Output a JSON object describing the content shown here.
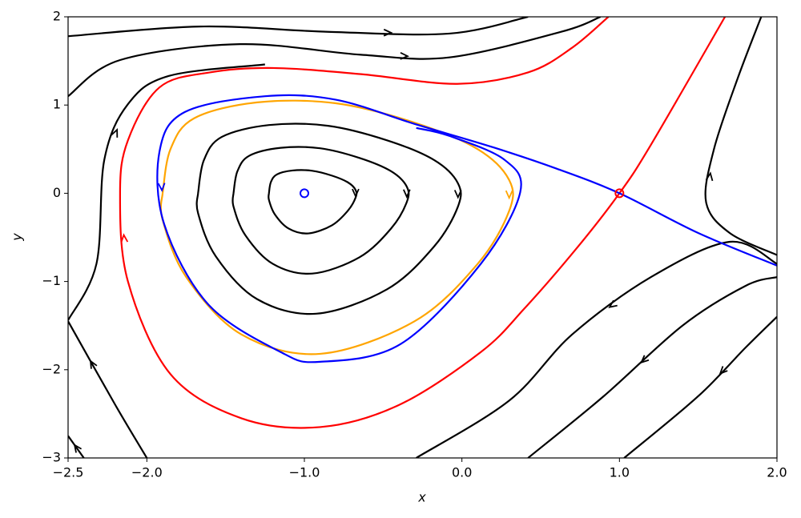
{
  "chart_data": {
    "type": "line",
    "xlabel": "x",
    "ylabel": "y",
    "xlim": [
      -2.5,
      2.0
    ],
    "ylim": [
      -3,
      2
    ],
    "xticks": [
      {
        "value": -2.5,
        "label": "−2.5"
      },
      {
        "value": -2.0,
        "label": "−2.0"
      },
      {
        "value": -1.0,
        "label": "−1.0"
      },
      {
        "value": 0.0,
        "label": "0.0"
      },
      {
        "value": 1.0,
        "label": "1.0"
      },
      {
        "value": 2.0,
        "label": "2.0"
      }
    ],
    "yticks": [
      {
        "value": -3,
        "label": "−3"
      },
      {
        "value": -2,
        "label": "−2"
      },
      {
        "value": -1,
        "label": "−1"
      },
      0,
      1,
      2
    ],
    "series": [
      {
        "color": "#000000",
        "x": [
          -2.5,
          -1.66,
          -0.85,
          -0.08,
          0.42
        ],
        "values": [
          1.78,
          1.89,
          1.83,
          1.81,
          2.0
        ]
      },
      {
        "color": "#000000",
        "x": [
          -2.5,
          -2.17,
          -1.41,
          -0.64,
          -0.08,
          0.63,
          0.88
        ],
        "values": [
          1.1,
          1.51,
          1.69,
          1.57,
          1.54,
          1.83,
          2.0
        ]
      },
      {
        "color": "#000000",
        "x": [
          -2.5,
          -2.32,
          -2.27,
          -2.12,
          -1.86,
          -1.25
        ],
        "values": [
          -1.44,
          -0.8,
          0.38,
          1.01,
          1.33,
          1.46
        ]
      },
      {
        "color": "#000000",
        "x": [
          -2.0,
          -2.2,
          -2.5
        ],
        "values": [
          -3,
          -2.4,
          -1.45
        ]
      },
      {
        "color": "#000000",
        "x": [
          -2.4,
          -2.5
        ],
        "values": [
          -3,
          -2.75
        ]
      },
      {
        "color": "#000000",
        "x": [
          2.0,
          1.7,
          1.2,
          0.7,
          0.3,
          -0.29
        ],
        "values": [
          -0.8,
          -0.55,
          -0.95,
          -1.6,
          -2.35,
          -3
        ]
      },
      {
        "color": "#000000",
        "x": [
          2.0,
          1.8,
          1.4,
          0.9,
          0.42
        ],
        "values": [
          -0.95,
          -1.05,
          -1.5,
          -2.3,
          -3
        ]
      },
      {
        "color": "#000000",
        "x": [
          2.0,
          1.8,
          1.5,
          1.03
        ],
        "values": [
          -1.4,
          -1.75,
          -2.3,
          -3
        ]
      },
      {
        "color": "#000000",
        "x": [
          2.0,
          1.7,
          1.55,
          1.6,
          1.75,
          1.9
        ],
        "values": [
          -0.7,
          -0.45,
          -0.1,
          0.5,
          1.3,
          2.0
        ]
      },
      {
        "color": "#000000",
        "x": [
          -1.675,
          -1.638,
          -1.525,
          -1.225,
          -0.85,
          -0.475,
          -0.175,
          -0.025,
          -0.025,
          -0.175,
          -0.475,
          -0.925,
          -1.3,
          -1.563,
          -1.675,
          -1.675
        ],
        "values": [
          0,
          0.375,
          0.638,
          0.773,
          0.765,
          0.6,
          0.375,
          0.113,
          -0.15,
          -0.6,
          -1.088,
          -1.365,
          -1.2,
          -0.713,
          -0.225,
          0
        ]
      },
      {
        "color": "#000000",
        "x": [
          -1.45,
          -1.425,
          -1.35,
          -1.15,
          -0.9,
          -0.65,
          -0.45,
          -0.35,
          -0.35,
          -0.45,
          -0.65,
          -0.95,
          -1.2,
          -1.375,
          -1.45,
          -1.45
        ],
        "values": [
          0,
          0.25,
          0.425,
          0.515,
          0.51,
          0.4,
          0.25,
          0.075,
          -0.1,
          -0.4,
          -0.725,
          -0.91,
          -0.8,
          -0.475,
          -0.15,
          0
        ]
      },
      {
        "color": "#000000",
        "x": [
          -1.225,
          -1.213,
          -1.175,
          -1.075,
          -0.95,
          -0.825,
          -0.725,
          -0.675,
          -0.675,
          -0.725,
          -0.825,
          -0.975,
          -1.1,
          -1.188,
          -1.225,
          -1.225
        ],
        "values": [
          0,
          0.125,
          0.213,
          0.258,
          0.255,
          0.2,
          0.125,
          0.038,
          -0.05,
          -0.2,
          -0.363,
          -0.455,
          -0.4,
          -0.238,
          -0.075,
          0
        ]
      },
      {
        "color": "#ffa500",
        "x": [
          -1.9,
          -1.85,
          -1.7,
          -1.3,
          -0.8,
          -0.3,
          0.1,
          0.3,
          0.3,
          0.1,
          -0.3,
          -0.9,
          -1.4,
          -1.75,
          -1.9,
          -1.9
        ],
        "values": [
          0,
          0.5,
          0.85,
          1.03,
          1.02,
          0.8,
          0.5,
          0.15,
          -0.2,
          -0.8,
          -1.45,
          -1.82,
          -1.6,
          -0.95,
          -0.3,
          0
        ]
      },
      {
        "color": "#ff0000",
        "x": [
          1.67,
          1.2,
          1.0,
          0.73,
          0.4,
          0.12,
          -0.4,
          -0.9,
          -1.4,
          -1.85,
          -2.12,
          -2.17,
          -2.12,
          -1.92,
          -1.6,
          -1.2,
          -0.64,
          -0.03,
          0.42,
          0.7,
          0.93
        ],
        "values": [
          2.0,
          0.55,
          0.0,
          -0.62,
          -1.3,
          -1.8,
          -2.4,
          -2.65,
          -2.55,
          -2.05,
          -1.0,
          0.0,
          0.6,
          1.2,
          1.37,
          1.42,
          1.35,
          1.24,
          1.37,
          1.65,
          2.0
        ]
      },
      {
        "color": "#0000ff",
        "x": [
          2.0,
          1.5,
          1.0,
          0.6,
          0.2,
          -0.29,
          -0.8,
          -1.25,
          -1.76,
          -1.92,
          -1.89,
          -1.61,
          -1.15,
          -0.9,
          -0.39,
          0.12,
          0.37,
          0.27,
          -0.08,
          -0.29
        ],
        "values": [
          -0.82,
          -0.45,
          0.0,
          0.28,
          0.52,
          0.78,
          1.06,
          1.1,
          0.92,
          0.47,
          -0.35,
          -1.26,
          -1.8,
          -1.91,
          -1.71,
          -0.8,
          0.01,
          0.38,
          0.65,
          0.74
        ]
      },
      {
        "color": "#0000ff",
        "marker": "o",
        "x": [
          -1.0
        ],
        "values": [
          0.0
        ]
      },
      {
        "color": "#ff0000",
        "marker": "o",
        "x": [
          1.0
        ],
        "values": [
          0.0
        ]
      }
    ]
  }
}
